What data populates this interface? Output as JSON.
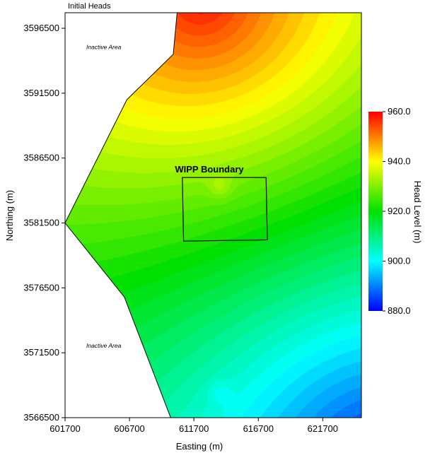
{
  "chart_data": {
    "type": "heatmap",
    "title": "Initial Heads",
    "xlabel": "Easting (m)",
    "ylabel": "Northing (m)",
    "xlim": [
      601700,
      624700
    ],
    "ylim": [
      3566500,
      3597700
    ],
    "x_ticks": [
      "601700",
      "606700",
      "611700",
      "616700",
      "621700"
    ],
    "y_ticks": [
      "3566500",
      "3571500",
      "3576500",
      "3581500",
      "3586500",
      "3591500",
      "3596500"
    ],
    "colorbar": {
      "label": "Head Level (m)",
      "range": [
        880,
        960
      ],
      "ticks": [
        "960.0",
        "940.0",
        "920.0",
        "900.0",
        "880.0"
      ],
      "colors": [
        "#ff0000",
        "#ffff00",
        "#00e000",
        "#00ffff",
        "#0000ff"
      ]
    },
    "annotations": [
      {
        "text": "Inactive Area",
        "x": 604700,
        "y": 3594900
      },
      {
        "text": "Inactive Area",
        "x": 604700,
        "y": 3571900
      },
      {
        "text": "WIPP Boundary",
        "x": 612900,
        "y": 3585400
      }
    ],
    "active_region": [
      [
        610400,
        3597700
      ],
      [
        624700,
        3597700
      ],
      [
        624700,
        3566500
      ],
      [
        609900,
        3566500
      ],
      [
        606300,
        3575800
      ],
      [
        601700,
        3581500
      ],
      [
        606500,
        3591000
      ],
      [
        610100,
        3594500
      ]
    ],
    "wipp_boundary": [
      [
        610800,
        3585000
      ],
      [
        617300,
        3585000
      ],
      [
        617400,
        3580200
      ],
      [
        610900,
        3580100
      ]
    ],
    "head_field": {
      "max_head": 960,
      "max_location": [
        612200,
        3598800
      ],
      "min_head": 880,
      "min_location": [
        626200,
        3562800
      ]
    }
  }
}
